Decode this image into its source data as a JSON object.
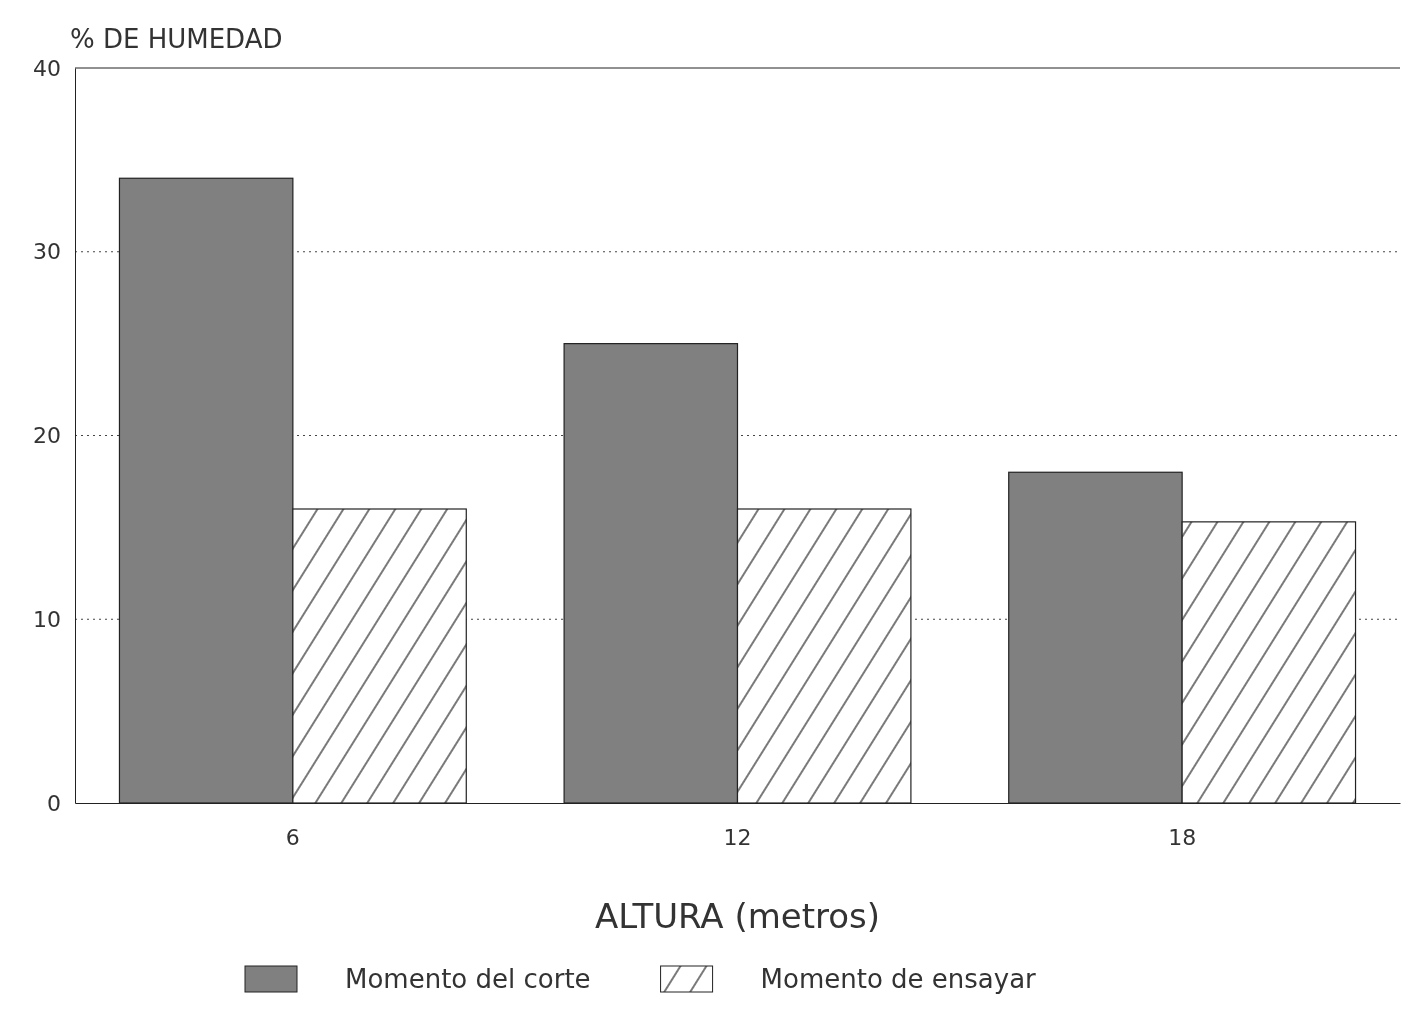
{
  "chart_data": {
    "type": "bar",
    "ylabel": "% DE HUMEDAD",
    "xlabel": "ALTURA (metros)",
    "categories": [
      "6",
      "12",
      "18"
    ],
    "series": [
      {
        "name": "Momento del corte",
        "color": "#808080",
        "values": [
          34,
          25,
          18
        ]
      },
      {
        "name": "Momento de ensayar",
        "color": "#222222",
        "values": [
          16,
          16,
          15.3
        ]
      }
    ],
    "ylim": [
      0,
      40
    ],
    "yticks": [
      0,
      10,
      20,
      30,
      40
    ],
    "grid": "y",
    "legend": "bottom"
  }
}
